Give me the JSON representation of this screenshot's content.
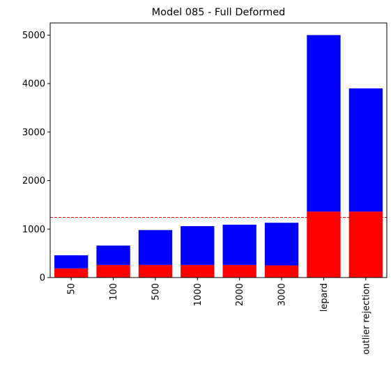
{
  "chart_data": {
    "type": "bar",
    "stacked": true,
    "title": "Model 085 - Full Deformed",
    "xlabel": "",
    "ylabel": "",
    "categories": [
      "50",
      "100",
      "500",
      "1000",
      "2000",
      "3000",
      "lepard",
      "outlier rejection"
    ],
    "series": [
      {
        "color": "#ff0000",
        "values": [
          190,
          260,
          260,
          260,
          260,
          250,
          1360,
          1360
        ]
      },
      {
        "color": "#0000ff",
        "values": [
          270,
          400,
          720,
          800,
          830,
          880,
          3640,
          2540
        ]
      }
    ],
    "reference_line": {
      "y": 1240,
      "color": "#ff0000",
      "style": "dashed"
    },
    "ylim": [
      0,
      5250
    ],
    "yticks": [
      0,
      1000,
      2000,
      3000,
      4000,
      5000
    ],
    "grid": false,
    "legend": "none"
  }
}
